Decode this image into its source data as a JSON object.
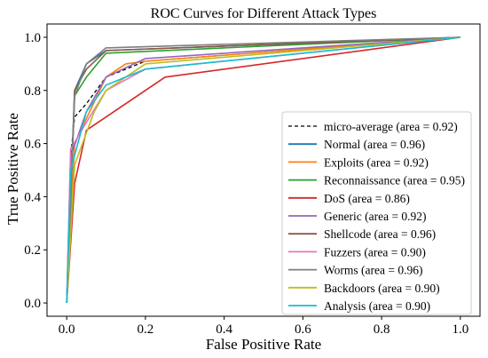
{
  "chart_data": {
    "type": "line",
    "title": "ROC Curves for Different Attack Types",
    "xlabel": "False Positive Rate",
    "ylabel": "True Positive Rate",
    "xlim": [
      -0.05,
      1.05
    ],
    "ylim": [
      -0.05,
      1.05
    ],
    "xticks": [
      0.0,
      0.2,
      0.4,
      0.6,
      0.8,
      1.0
    ],
    "yticks": [
      0.0,
      0.2,
      0.4,
      0.6,
      0.8,
      1.0
    ],
    "xtick_labels": [
      "0.0",
      "0.2",
      "0.4",
      "0.6",
      "0.8",
      "1.0"
    ],
    "ytick_labels": [
      "0.0",
      "0.2",
      "0.4",
      "0.6",
      "0.8",
      "1.0"
    ],
    "grid": false,
    "legend_position": "lower-right",
    "series": [
      {
        "name": "micro-average (area = 0.92)",
        "color": "#000000",
        "dashed": true,
        "x": [
          0,
          0.01,
          0.02,
          0.05,
          0.1,
          0.2,
          1.0
        ],
        "y": [
          0,
          0.55,
          0.7,
          0.75,
          0.85,
          0.91,
          1.0
        ]
      },
      {
        "name": "Normal (area = 0.96)",
        "color": "#1f77b4",
        "x": [
          0,
          0.02,
          0.05,
          0.1,
          1.0
        ],
        "y": [
          0,
          0.8,
          0.9,
          0.95,
          1.0
        ]
      },
      {
        "name": "Exploits (area = 0.92)",
        "color": "#ff7f0e",
        "x": [
          0,
          0.02,
          0.1,
          0.15,
          0.2,
          1.0
        ],
        "y": [
          0,
          0.6,
          0.85,
          0.9,
          0.91,
          1.0
        ]
      },
      {
        "name": "Reconnaissance (area = 0.95)",
        "color": "#2ca02c",
        "x": [
          0,
          0.02,
          0.05,
          0.1,
          1.0
        ],
        "y": [
          0,
          0.78,
          0.85,
          0.94,
          1.0
        ]
      },
      {
        "name": "DoS (area = 0.86)",
        "color": "#d62728",
        "x": [
          0,
          0.02,
          0.05,
          0.1,
          0.25,
          1.0
        ],
        "y": [
          0,
          0.45,
          0.65,
          0.7,
          0.85,
          1.0
        ]
      },
      {
        "name": "Generic (area = 0.92)",
        "color": "#9467bd",
        "x": [
          0,
          0.01,
          0.05,
          0.1,
          0.2,
          1.0
        ],
        "y": [
          0,
          0.55,
          0.72,
          0.85,
          0.92,
          1.0
        ]
      },
      {
        "name": "Shellcode (area = 0.96)",
        "color": "#8c564b",
        "x": [
          0,
          0.02,
          0.05,
          0.1,
          1.0
        ],
        "y": [
          0,
          0.8,
          0.88,
          0.95,
          1.0
        ]
      },
      {
        "name": "Fuzzers (area = 0.90)",
        "color": "#e377c2",
        "x": [
          0,
          0.01,
          0.05,
          0.1,
          0.2,
          1.0
        ],
        "y": [
          0,
          0.58,
          0.68,
          0.8,
          0.88,
          1.0
        ]
      },
      {
        "name": "Worms (area = 0.96)",
        "color": "#7f7f7f",
        "x": [
          0,
          0.02,
          0.05,
          0.1,
          1.0
        ],
        "y": [
          0,
          0.78,
          0.9,
          0.96,
          1.0
        ]
      },
      {
        "name": "Backdoors (area = 0.90)",
        "color": "#bcbd22",
        "x": [
          0,
          0.02,
          0.07,
          0.1,
          0.15,
          0.2,
          1.0
        ],
        "y": [
          0,
          0.52,
          0.72,
          0.8,
          0.85,
          0.9,
          1.0
        ]
      },
      {
        "name": "Analysis (area = 0.90)",
        "color": "#17becf",
        "x": [
          0,
          0.01,
          0.05,
          0.1,
          0.2,
          1.0
        ],
        "y": [
          0,
          0.5,
          0.72,
          0.82,
          0.88,
          1.0
        ]
      }
    ]
  }
}
